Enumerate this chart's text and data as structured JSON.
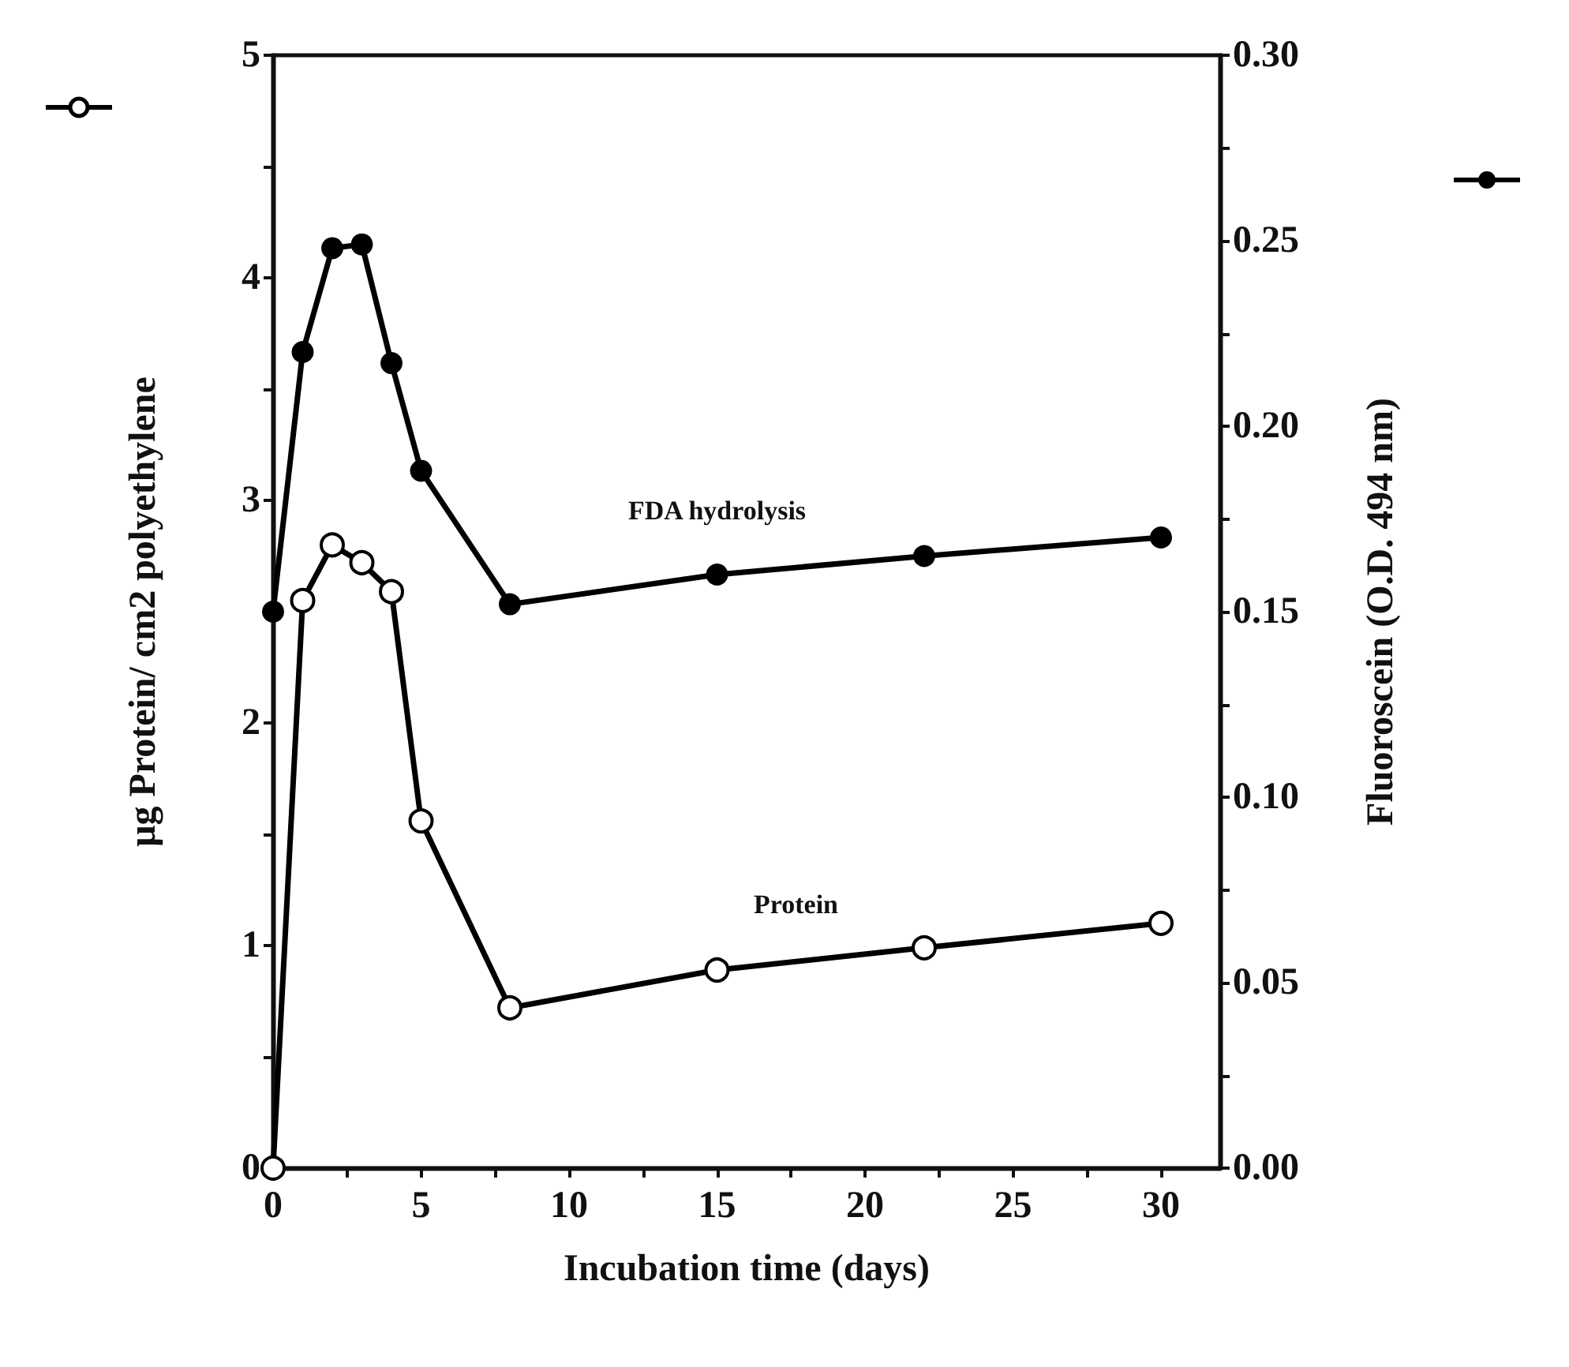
{
  "chart_data": {
    "type": "line",
    "xlabel": "Incubation time (days)",
    "ylabel": "μg Protein/ cm2 polyethylene",
    "y2label": "Fluoroscein (O.D. 494 nm)",
    "x": [
      0,
      1,
      2,
      3,
      4,
      5,
      8,
      15,
      22,
      30
    ],
    "series": [
      {
        "name": "Protein",
        "color": "#000000",
        "values": [
          0,
          2.55,
          2.8,
          2.72,
          2.59,
          1.56,
          0.72,
          0.89,
          0.99,
          1.1
        ]
      },
      {
        "name": "FDA hydrolysis",
        "color": "#000000",
        "axis": "y2",
        "values": [
          0.15,
          0.22,
          0.248,
          0.249,
          0.217,
          0.188,
          0.152,
          0.16,
          0.165,
          0.17
        ]
      }
    ],
    "xlim": [
      0,
      32
    ],
    "xticks": [
      0,
      {
        "value": 2.5,
        "label": null
      },
      5,
      {
        "value": 7.5,
        "label": null
      },
      10,
      {
        "value": 12.5,
        "label": null
      },
      15,
      {
        "value": 17.5,
        "label": null
      },
      20,
      {
        "value": 22.5,
        "label": null
      },
      25,
      {
        "value": 27.5,
        "label": null
      },
      30
    ],
    "ylim": [
      0,
      5
    ],
    "yticks": [
      0,
      {
        "value": 0.5,
        "label": null
      },
      1,
      {
        "value": 1.5,
        "label": null
      },
      2,
      {
        "value": 2.5,
        "label": null
      },
      3,
      {
        "value": 3.5,
        "label": null
      },
      4,
      {
        "value": 4.5,
        "label": null
      },
      5
    ],
    "y2lim": [
      0,
      0.3
    ],
    "y2ticks": [
      {
        "value": 0,
        "label": "0.00"
      },
      {
        "value": 0.025,
        "label": null
      },
      {
        "value": 0.05,
        "label": "0.05"
      },
      {
        "value": 0.075,
        "label": null
      },
      {
        "value": 0.1,
        "label": "0.10"
      },
      {
        "value": 0.125,
        "label": null
      },
      {
        "value": 0.15,
        "label": "0.15"
      },
      {
        "value": 0.175,
        "label": null
      },
      {
        "value": 0.2,
        "label": "0.20"
      },
      {
        "value": 0.225,
        "label": null
      },
      {
        "value": 0.25,
        "label": "0.25"
      },
      {
        "value": 0.275,
        "label": null
      },
      {
        "value": 0.3,
        "label": "0.30"
      }
    ],
    "grid": false,
    "legend": false,
    "marker": "circle",
    "line_style": "solid"
  }
}
